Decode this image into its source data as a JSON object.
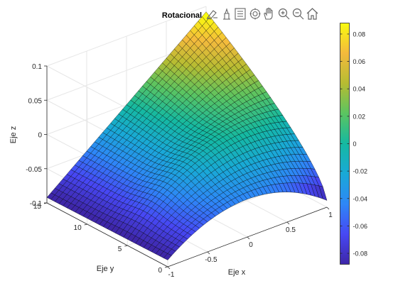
{
  "chart_data": {
    "type": "surface",
    "title": "Rotacional",
    "xlabel": "Eje x",
    "ylabel": "Eje y",
    "zlabel": "Eje z",
    "x_range": [
      -1,
      1
    ],
    "y_range": [
      0,
      15
    ],
    "z_range": [
      -0.1,
      0.1
    ],
    "x_ticks": [
      "-1",
      "-0.5",
      "0",
      "0.5",
      "1"
    ],
    "y_ticks": [
      "0",
      "5",
      "10",
      "15"
    ],
    "z_ticks": [
      "-0.1",
      "-0.05",
      "0",
      "0.05",
      "0.1"
    ],
    "colorbar": {
      "colormap": "parula",
      "range": [
        -0.088,
        0.088
      ],
      "ticks": [
        "0.08",
        "0.06",
        "0.04",
        "0.02",
        "0",
        "-0.02",
        "-0.04",
        "-0.06",
        "-0.08"
      ]
    },
    "surface_samples": [
      {
        "x": 1,
        "y": 15,
        "z": 0.092
      },
      {
        "x": 0,
        "y": 15,
        "z": 0
      },
      {
        "x": -1,
        "y": 15,
        "z": -0.092
      },
      {
        "x": 1,
        "y": 0,
        "z": -0.092
      },
      {
        "x": 0,
        "y": 0,
        "z": -0.045
      },
      {
        "x": -1,
        "y": 0,
        "z": -0.092
      }
    ],
    "grid": true
  },
  "toolbar": {
    "icons": [
      "brush-icon",
      "data-tips-icon",
      "legend-icon",
      "rotate-3d-icon",
      "pan-hand-icon",
      "zoom-in-icon",
      "zoom-out-icon",
      "home-icon"
    ]
  },
  "colors": {
    "background": "#ffffff",
    "axis": "#262626",
    "grid": "#e6e6e6",
    "edge": "#000000"
  }
}
